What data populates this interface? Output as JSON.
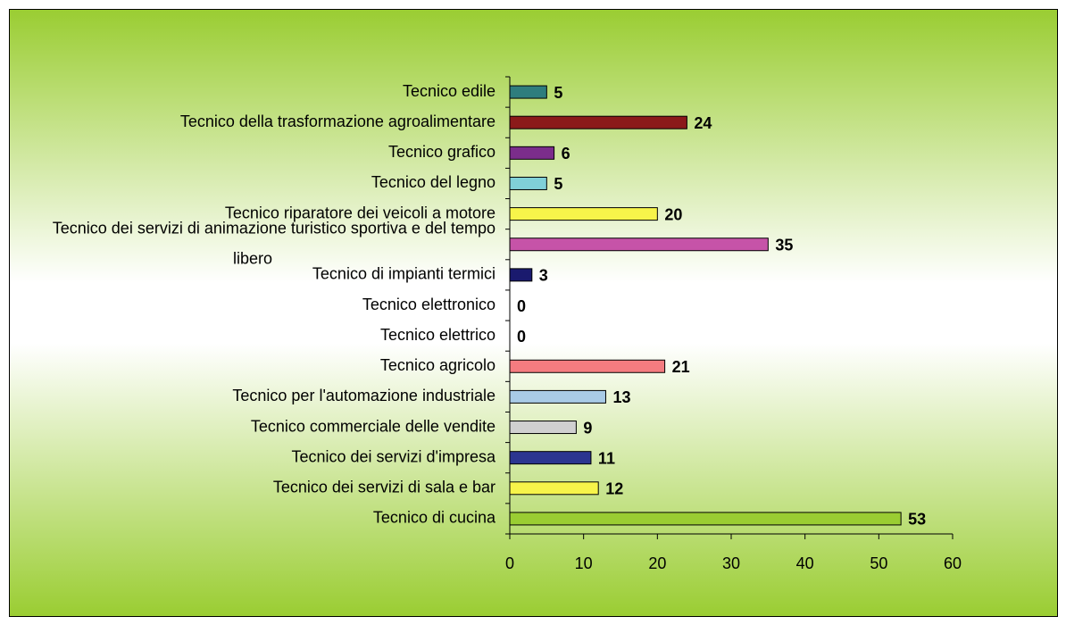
{
  "chart_data": {
    "type": "bar",
    "orientation": "horizontal",
    "categories": [
      "Tecnico edile",
      "Tecnico della trasformazione agroalimentare",
      "Tecnico grafico",
      "Tecnico del legno",
      "Tecnico riparatore dei veicoli a motore",
      "Tecnico dei servizi di animazione turistico sportiva e del tempo libero",
      "Tecnico di impianti termici",
      "Tecnico elettronico",
      "Tecnico elettrico",
      "Tecnico agricolo",
      "Tecnico per l'automazione industriale",
      "Tecnico commerciale delle vendite",
      "Tecnico dei servizi d'impresa",
      "Tecnico dei servizi di sala e bar",
      "Tecnico di cucina"
    ],
    "values": [
      5,
      24,
      6,
      5,
      20,
      35,
      3,
      0,
      0,
      21,
      13,
      9,
      11,
      12,
      53
    ],
    "colors": [
      "#2e7d7d",
      "#8b1a1a",
      "#7b2d8b",
      "#80d0d8",
      "#f7f44a",
      "#c653a8",
      "#1a1a6e",
      "#4a6fb0",
      "#4a6fb0",
      "#f47c80",
      "#a9cbe6",
      "#d0d0d0",
      "#2b3590",
      "#f7f44a",
      "#9acd32"
    ],
    "xlim": [
      0,
      60
    ],
    "xticks": [
      0,
      10,
      20,
      30,
      40,
      50,
      60
    ]
  }
}
